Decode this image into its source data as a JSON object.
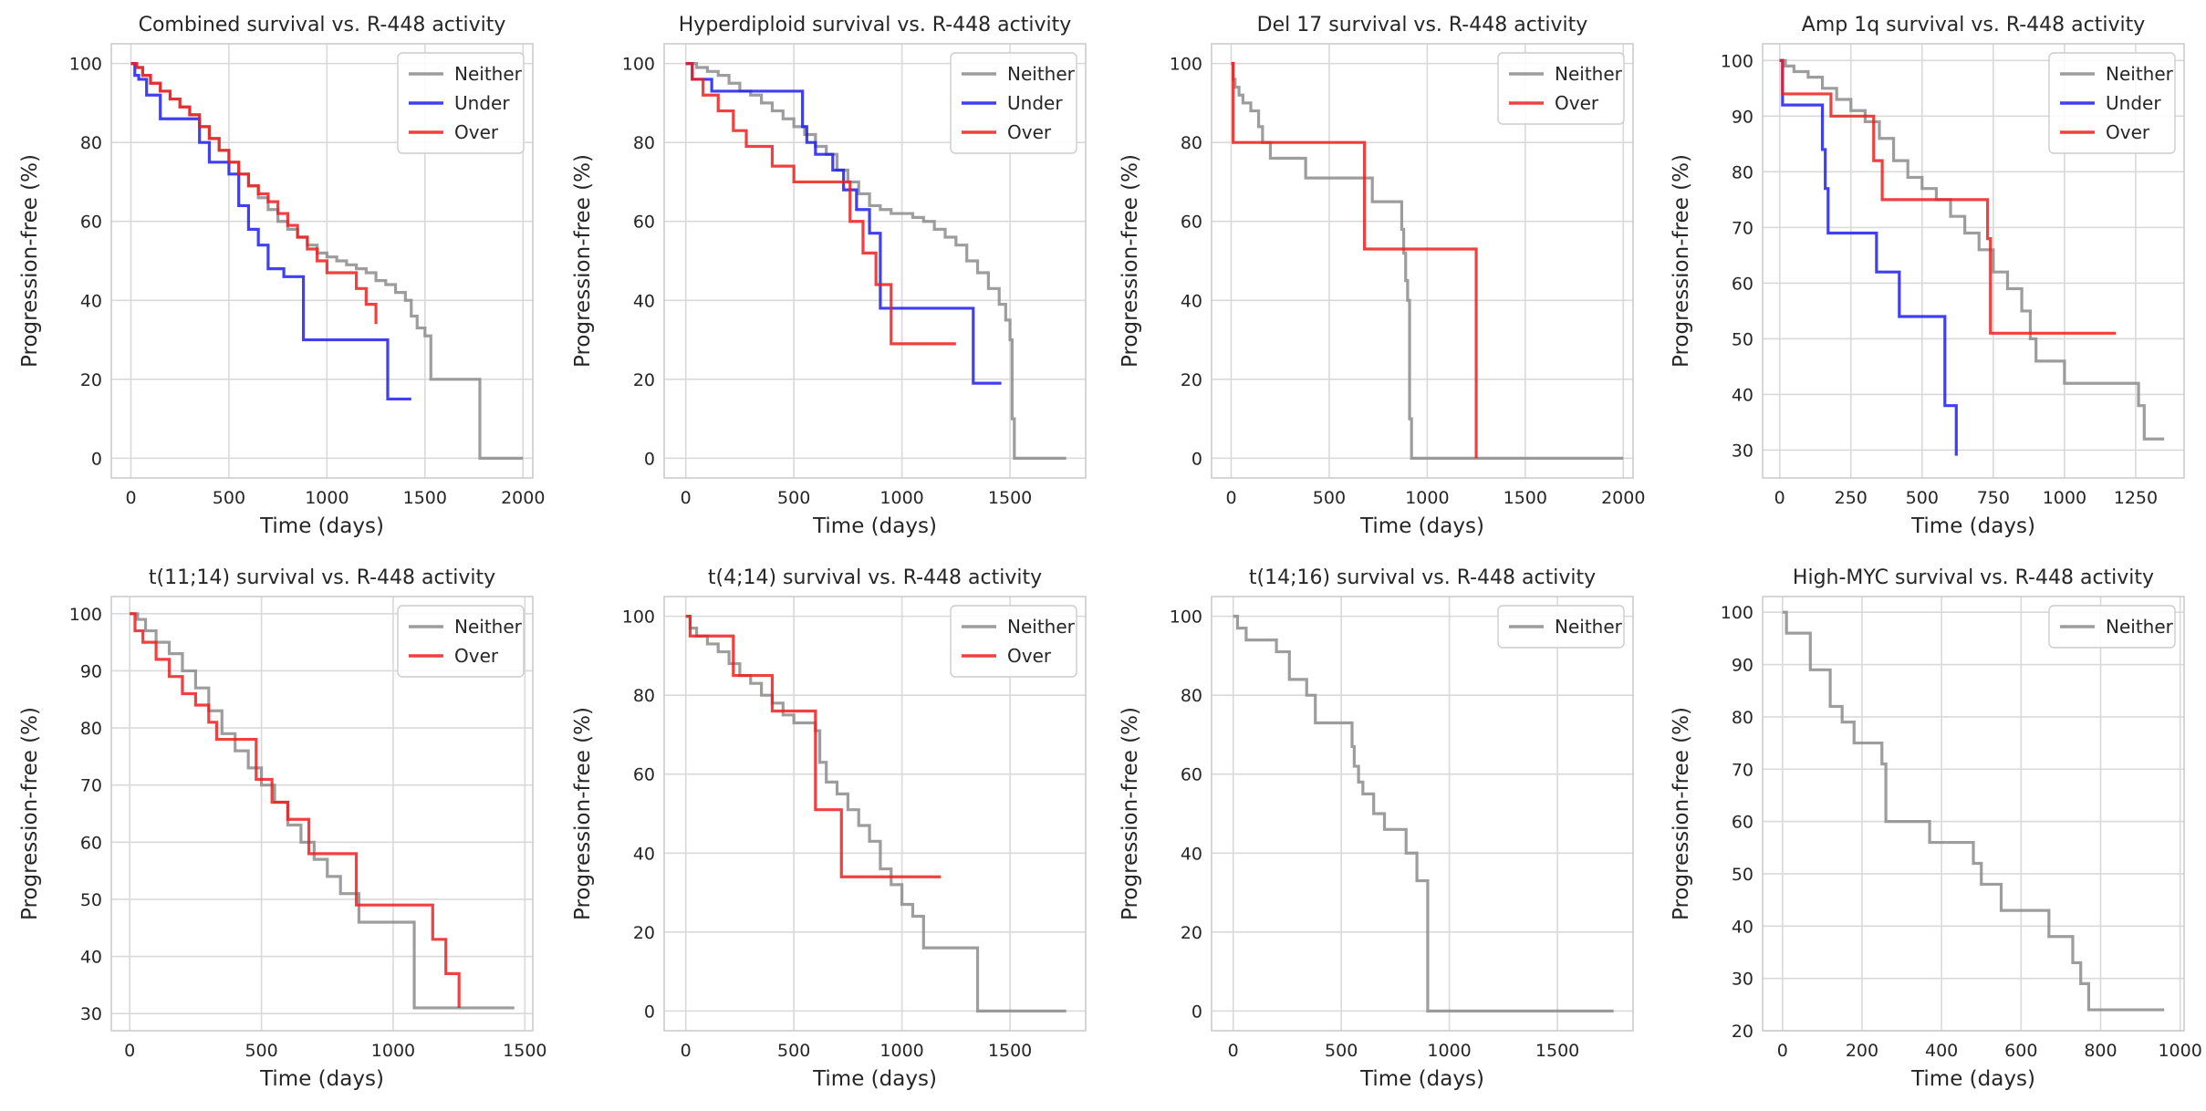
{
  "figure": {
    "layout": "2x4 grid of Kaplan-Meier style step plots"
  },
  "chart_data": [
    {
      "type": "line",
      "step": true,
      "title": "Combined survival vs. R-448 activity",
      "xlabel": "Time (days)",
      "ylabel": "Progression-free (%)",
      "xlim": [
        -100,
        2050
      ],
      "ylim": [
        -5,
        105
      ],
      "xticks": [
        0,
        500,
        1000,
        1500,
        2000
      ],
      "yticks": [
        0,
        20,
        40,
        60,
        80,
        100
      ],
      "grid": true,
      "legend": "top-right",
      "series": [
        {
          "name": "Neither",
          "color": "#8c8c8c",
          "x": [
            0,
            30,
            60,
            100,
            150,
            200,
            250,
            300,
            350,
            400,
            450,
            500,
            550,
            600,
            650,
            700,
            750,
            800,
            850,
            900,
            950,
            1000,
            1050,
            1100,
            1150,
            1200,
            1250,
            1300,
            1350,
            1400,
            1430,
            1460,
            1500,
            1530,
            1760,
            1780,
            2000
          ],
          "y": [
            100,
            99,
            97,
            95,
            93,
            91,
            89,
            87,
            84,
            81,
            78,
            75,
            72,
            69,
            66,
            63,
            60,
            58,
            56,
            54,
            52,
            51,
            50,
            49,
            48,
            47,
            45,
            44,
            42,
            40,
            36,
            33,
            31,
            20,
            20,
            0,
            0
          ]
        },
        {
          "name": "Under",
          "color": "#1f1fef",
          "x": [
            0,
            20,
            40,
            80,
            150,
            300,
            350,
            400,
            500,
            550,
            600,
            650,
            700,
            780,
            880,
            1020,
            1180,
            1310,
            1430
          ],
          "y": [
            100,
            97,
            96,
            92,
            86,
            86,
            80,
            75,
            72,
            64,
            58,
            54,
            48,
            46,
            30,
            30,
            30,
            15,
            15
          ]
        },
        {
          "name": "Over",
          "color": "#ef1f1f",
          "x": [
            0,
            30,
            60,
            100,
            150,
            200,
            250,
            300,
            350,
            400,
            450,
            500,
            550,
            600,
            650,
            700,
            750,
            800,
            850,
            900,
            950,
            1000,
            1070,
            1150,
            1200,
            1250
          ],
          "y": [
            100,
            99,
            97,
            95,
            93,
            91,
            89,
            87,
            84,
            81,
            78,
            75,
            72,
            69,
            67,
            65,
            62,
            59,
            56,
            53,
            50,
            47,
            47,
            43,
            39,
            34
          ]
        }
      ]
    },
    {
      "type": "line",
      "step": true,
      "title": "Hyperdiploid survival vs. R-448 activity",
      "xlabel": "Time (days)",
      "ylabel": "Progression-free (%)",
      "xlim": [
        -100,
        1850
      ],
      "ylim": [
        -5,
        105
      ],
      "xticks": [
        0,
        500,
        1000,
        1500
      ],
      "yticks": [
        0,
        20,
        40,
        60,
        80,
        100
      ],
      "grid": true,
      "legend": "top-right",
      "series": [
        {
          "name": "Neither",
          "color": "#8c8c8c",
          "x": [
            0,
            50,
            100,
            150,
            200,
            250,
            300,
            350,
            400,
            450,
            500,
            550,
            600,
            650,
            700,
            750,
            800,
            850,
            900,
            950,
            1000,
            1050,
            1100,
            1150,
            1200,
            1250,
            1300,
            1350,
            1400,
            1450,
            1480,
            1500,
            1510,
            1520,
            1760
          ],
          "y": [
            100,
            99,
            98,
            97,
            95,
            93,
            92,
            90,
            88,
            86,
            84,
            82,
            79,
            77,
            73,
            70,
            67,
            64,
            63,
            62,
            62,
            61,
            60,
            58,
            56,
            54,
            50,
            47,
            43,
            39,
            35,
            30,
            10,
            0,
            0
          ]
        },
        {
          "name": "Under",
          "color": "#1f1fef",
          "x": [
            0,
            30,
            120,
            350,
            540,
            560,
            600,
            680,
            730,
            790,
            850,
            900,
            1330,
            1460
          ],
          "y": [
            100,
            96,
            93,
            93,
            84,
            80,
            77,
            73,
            68,
            63,
            57,
            38,
            19,
            19
          ]
        },
        {
          "name": "Over",
          "color": "#ef1f1f",
          "x": [
            0,
            30,
            80,
            150,
            220,
            280,
            400,
            500,
            700,
            760,
            820,
            880,
            950,
            1250
          ],
          "y": [
            100,
            96,
            92,
            88,
            83,
            79,
            74,
            70,
            70,
            60,
            52,
            44,
            29,
            29
          ]
        }
      ]
    },
    {
      "type": "line",
      "step": true,
      "title": "Del 17 survival vs. R-448 activity",
      "xlabel": "Time (days)",
      "ylabel": "Progression-free (%)",
      "xlim": [
        -100,
        2050
      ],
      "ylim": [
        -5,
        105
      ],
      "xticks": [
        0,
        500,
        1000,
        1500,
        2000
      ],
      "yticks": [
        0,
        20,
        40,
        60,
        80,
        100
      ],
      "grid": true,
      "legend": "top-right",
      "series": [
        {
          "name": "Neither",
          "color": "#8c8c8c",
          "x": [
            0,
            10,
            20,
            40,
            60,
            100,
            140,
            160,
            200,
            380,
            720,
            870,
            880,
            890,
            900,
            910,
            920,
            2000
          ],
          "y": [
            100,
            96,
            94,
            92,
            90,
            88,
            84,
            80,
            76,
            71,
            65,
            58,
            52,
            45,
            40,
            10,
            0,
            0
          ]
        },
        {
          "name": "Over",
          "color": "#ef1f1f",
          "x": [
            0,
            10,
            600,
            680,
            1250
          ],
          "y": [
            100,
            80,
            80,
            53,
            0
          ]
        }
      ]
    },
    {
      "type": "line",
      "step": true,
      "title": "Amp 1q survival vs. R-448 activity",
      "xlabel": "Time (days)",
      "ylabel": "Progression-free (%)",
      "xlim": [
        -60,
        1420
      ],
      "ylim": [
        25,
        103
      ],
      "xticks": [
        0,
        250,
        500,
        750,
        1000,
        1250
      ],
      "yticks": [
        30,
        40,
        50,
        60,
        70,
        80,
        90,
        100
      ],
      "grid": true,
      "legend": "top-right",
      "series": [
        {
          "name": "Neither",
          "color": "#8c8c8c",
          "x": [
            0,
            20,
            50,
            100,
            150,
            200,
            250,
            300,
            350,
            400,
            450,
            500,
            550,
            600,
            650,
            700,
            750,
            800,
            850,
            880,
            900,
            1000,
            1240,
            1260,
            1280,
            1350
          ],
          "y": [
            100,
            99,
            98,
            97,
            95,
            93,
            91,
            89,
            86,
            82,
            79,
            77,
            75,
            72,
            69,
            66,
            62,
            59,
            55,
            50,
            46,
            42,
            42,
            38,
            32,
            32
          ]
        },
        {
          "name": "Under",
          "color": "#1f1fef",
          "x": [
            0,
            10,
            150,
            160,
            170,
            340,
            420,
            580,
            620
          ],
          "y": [
            100,
            92,
            84,
            77,
            69,
            62,
            54,
            38,
            29
          ]
        },
        {
          "name": "Over",
          "color": "#ef1f1f",
          "x": [
            0,
            10,
            180,
            330,
            360,
            730,
            740,
            1180
          ],
          "y": [
            100,
            94,
            90,
            82,
            75,
            68,
            51,
            51
          ]
        }
      ]
    },
    {
      "type": "line",
      "step": true,
      "title": "t(11;14) survival vs. R-448 activity",
      "xlabel": "Time (days)",
      "ylabel": "Progression-free (%)",
      "xlim": [
        -70,
        1530
      ],
      "ylim": [
        27,
        103
      ],
      "xticks": [
        0,
        500,
        1000,
        1500
      ],
      "yticks": [
        30,
        40,
        50,
        60,
        70,
        80,
        90,
        100
      ],
      "grid": true,
      "legend": "top-right",
      "series": [
        {
          "name": "Neither",
          "color": "#8c8c8c",
          "x": [
            0,
            30,
            60,
            100,
            150,
            200,
            250,
            300,
            350,
            400,
            450,
            500,
            550,
            600,
            650,
            700,
            750,
            800,
            870,
            1060,
            1080,
            1460
          ],
          "y": [
            100,
            99,
            97,
            95,
            93,
            90,
            87,
            83,
            79,
            76,
            73,
            70,
            67,
            63,
            60,
            57,
            54,
            51,
            46,
            46,
            31,
            31
          ]
        },
        {
          "name": "Over",
          "color": "#ef1f1f",
          "x": [
            0,
            20,
            50,
            100,
            150,
            200,
            250,
            300,
            330,
            400,
            480,
            540,
            600,
            680,
            860,
            1150,
            1200,
            1250
          ],
          "y": [
            100,
            97,
            95,
            92,
            89,
            86,
            84,
            81,
            78,
            78,
            71,
            67,
            64,
            58,
            49,
            43,
            37,
            31
          ]
        }
      ]
    },
    {
      "type": "line",
      "step": true,
      "title": "t(4;14) survival vs. R-448 activity",
      "xlabel": "Time (days)",
      "ylabel": "Progression-free (%)",
      "xlim": [
        -100,
        1850
      ],
      "ylim": [
        -5,
        105
      ],
      "xticks": [
        0,
        500,
        1000,
        1500
      ],
      "yticks": [
        0,
        20,
        40,
        60,
        80,
        100
      ],
      "grid": true,
      "legend": "top-right",
      "series": [
        {
          "name": "Neither",
          "color": "#8c8c8c",
          "x": [
            0,
            20,
            50,
            100,
            150,
            200,
            250,
            300,
            350,
            400,
            450,
            500,
            550,
            600,
            620,
            650,
            700,
            750,
            800,
            850,
            900,
            950,
            1000,
            1050,
            1100,
            1350,
            1760
          ],
          "y": [
            100,
            97,
            95,
            93,
            91,
            88,
            85,
            83,
            80,
            78,
            75,
            73,
            73,
            71,
            63,
            58,
            55,
            51,
            47,
            43,
            36,
            32,
            27,
            24,
            16,
            0,
            0
          ]
        },
        {
          "name": "Over",
          "color": "#ef1f1f",
          "x": [
            0,
            20,
            220,
            400,
            600,
            720,
            1180
          ],
          "y": [
            100,
            95,
            85,
            76,
            51,
            34,
            34
          ]
        }
      ]
    },
    {
      "type": "line",
      "step": true,
      "title": "t(14;16) survival vs. R-448 activity",
      "xlabel": "Time (days)",
      "ylabel": "Progression-free (%)",
      "xlim": [
        -100,
        1850
      ],
      "ylim": [
        -5,
        105
      ],
      "xticks": [
        0,
        500,
        1000,
        1500
      ],
      "yticks": [
        0,
        20,
        40,
        60,
        80,
        100
      ],
      "grid": true,
      "legend": "top-right",
      "series": [
        {
          "name": "Neither",
          "color": "#8c8c8c",
          "x": [
            0,
            20,
            60,
            200,
            260,
            340,
            380,
            550,
            560,
            580,
            600,
            650,
            700,
            800,
            850,
            900,
            920,
            1760
          ],
          "y": [
            100,
            97,
            94,
            91,
            84,
            80,
            73,
            67,
            62,
            58,
            55,
            50,
            46,
            40,
            33,
            0,
            0,
            0
          ]
        }
      ]
    },
    {
      "type": "line",
      "step": true,
      "title": "High-MYC survival vs. R-448 activity",
      "xlabel": "Time (days)",
      "ylabel": "Progression-free (%)",
      "xlim": [
        -50,
        1010
      ],
      "ylim": [
        20,
        103
      ],
      "xticks": [
        0,
        200,
        400,
        600,
        800,
        1000
      ],
      "yticks": [
        20,
        30,
        40,
        50,
        60,
        70,
        80,
        90,
        100
      ],
      "grid": true,
      "legend": "top-right",
      "series": [
        {
          "name": "Neither",
          "color": "#8c8c8c",
          "x": [
            0,
            10,
            70,
            120,
            150,
            180,
            250,
            260,
            370,
            480,
            500,
            550,
            670,
            730,
            750,
            770,
            960
          ],
          "y": [
            100,
            96,
            89,
            82,
            79,
            75,
            71,
            60,
            56,
            52,
            48,
            43,
            38,
            33,
            29,
            24,
            24
          ]
        }
      ]
    }
  ]
}
